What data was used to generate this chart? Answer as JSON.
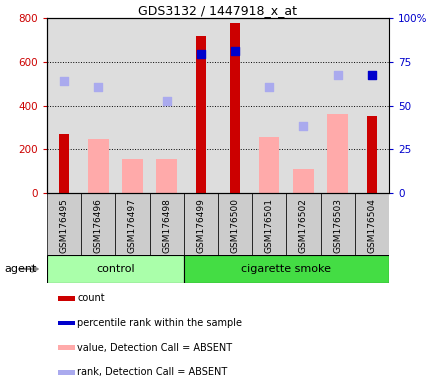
{
  "title": "GDS3132 / 1447918_x_at",
  "samples": [
    "GSM176495",
    "GSM176496",
    "GSM176497",
    "GSM176498",
    "GSM176499",
    "GSM176500",
    "GSM176501",
    "GSM176502",
    "GSM176503",
    "GSM176504"
  ],
  "count_values": [
    270,
    null,
    null,
    null,
    720,
    775,
    null,
    null,
    null,
    350
  ],
  "count_color": "#cc0000",
  "absent_value_bars": [
    null,
    245,
    155,
    155,
    null,
    null,
    255,
    110,
    360,
    null
  ],
  "absent_value_color": "#ffaaaa",
  "percentile_rank_dots": [
    null,
    null,
    null,
    null,
    635,
    650,
    null,
    null,
    null,
    540
  ],
  "percentile_rank_color": "#0000cc",
  "absent_rank_dots": [
    510,
    485,
    null,
    420,
    null,
    null,
    485,
    305,
    540,
    null
  ],
  "absent_rank_color": "#aaaaee",
  "left_ylim": [
    0,
    800
  ],
  "left_yticks": [
    0,
    200,
    400,
    600,
    800
  ],
  "right_ylim": [
    0,
    100
  ],
  "right_yticks": [
    0,
    25,
    50,
    75,
    100
  ],
  "right_yticklabels": [
    "0",
    "25",
    "50",
    "75",
    "100%"
  ],
  "group_control_color": "#aaffaa",
  "group_smoke_color": "#44dd44",
  "tick_area_color": "#cccccc",
  "plot_bg_color": "#dddddd",
  "agent_label": "agent",
  "legend_items": [
    {
      "label": "count",
      "color": "#cc0000"
    },
    {
      "label": "percentile rank within the sample",
      "color": "#0000cc"
    },
    {
      "label": "value, Detection Call = ABSENT",
      "color": "#ffaaaa"
    },
    {
      "label": "rank, Detection Call = ABSENT",
      "color": "#aaaaee"
    }
  ]
}
